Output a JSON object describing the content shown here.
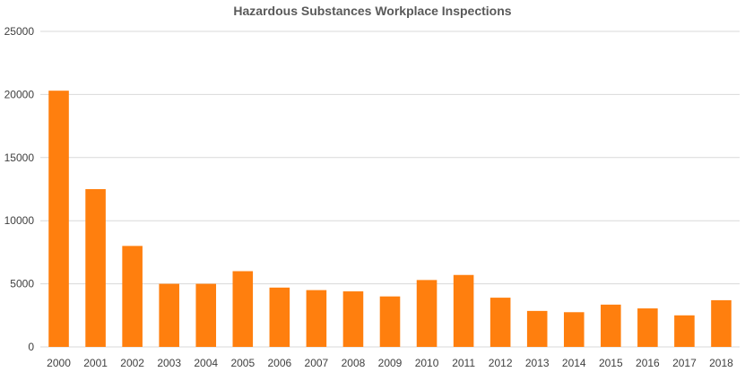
{
  "chart_data": {
    "type": "bar",
    "title": "Hazardous Substances Workplace Inspections",
    "xlabel": "",
    "ylabel": "",
    "categories": [
      "2000",
      "2001",
      "2002",
      "2003",
      "2004",
      "2005",
      "2006",
      "2007",
      "2008",
      "2009",
      "2010",
      "2011",
      "2012",
      "2013",
      "2014",
      "2015",
      "2016",
      "2017",
      "2018"
    ],
    "series": [
      {
        "values": [
          20300,
          12500,
          8000,
          5000,
          5000,
          6000,
          4700,
          4500,
          4400,
          4000,
          5300,
          5700,
          3900,
          2850,
          2750,
          3350,
          3050,
          2500,
          3700
        ]
      }
    ],
    "ylim": [
      0,
      25000
    ],
    "yticks": [
      "0",
      "5000",
      "10000",
      "15000",
      "20000",
      "25000"
    ],
    "grid": true,
    "legend": "none",
    "bar_color": "#ff7f0e",
    "grid_color": "#d9d9d9",
    "text_color": "#404040"
  }
}
